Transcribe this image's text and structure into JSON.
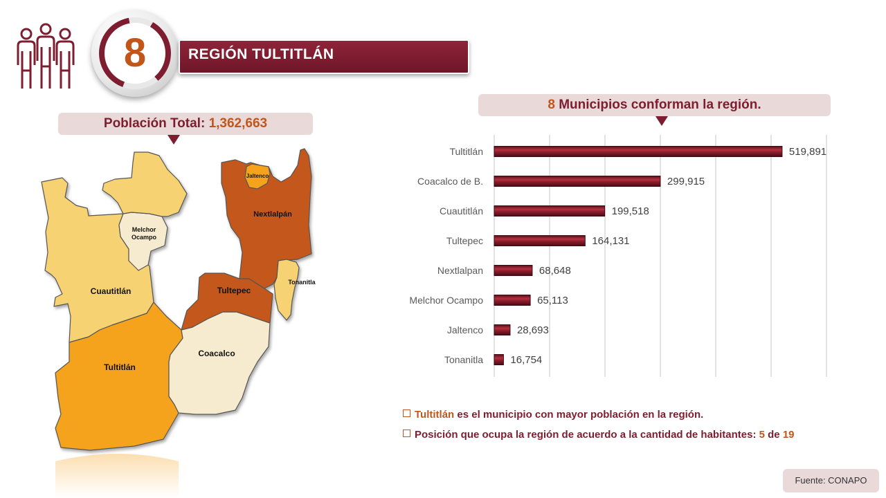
{
  "header": {
    "region_number": "8",
    "region_title": "REGIÓN TULTITLÁN",
    "people_icon": "people-group-icon"
  },
  "population": {
    "label": "Población Total:",
    "value": "1,362,663"
  },
  "chart_header": {
    "count": "8",
    "text": "Municipios conforman la región."
  },
  "map": {
    "labels": {
      "cuautitlan": "Cuautitlán",
      "melchor_ocampo_1": "Melchor",
      "melchor_ocampo_2": "Ocampo",
      "tultitlan": "Tultitlán",
      "coacalco": "Coacalco",
      "tultepec": "Tultepec",
      "nextlalpan": "Nextlalpán",
      "jaltenco": "Jaltenco",
      "tonanitla": "Tonanitla"
    },
    "colors": {
      "light_yellow": "#f6d273",
      "cream": "#f6ebcf",
      "orange": "#f5a21e",
      "dark_orange": "#c4581b",
      "border": "#555555"
    }
  },
  "chart_data": {
    "type": "bar",
    "orientation": "horizontal",
    "categories": [
      "Tultitlán",
      "Coacalco de B.",
      "Cuautitlán",
      "Tultepec",
      "Nextlalpan",
      "Melchor Ocampo",
      "Jaltenco",
      "Tonanitla"
    ],
    "values": [
      519891,
      299915,
      199518,
      164131,
      68648,
      65113,
      28693,
      16754
    ],
    "value_labels": [
      "519,891",
      "299,915",
      "199,518",
      "164,131",
      "68,648",
      "65,113",
      "28,693",
      "16,754"
    ],
    "xlim": [
      0,
      600000
    ],
    "grid": true,
    "bar_color": "#7d1d2f"
  },
  "notes": {
    "note1_highlight": "Tultitlán",
    "note1_rest": "es el municipio con mayor población en la región.",
    "note2_text": "Posición que ocupa la región de acuerdo a la cantidad de habitantes:",
    "note2_rank": "5",
    "note2_of": "de",
    "note2_total": "19"
  },
  "source": {
    "text": "Fuente: CONAPO"
  }
}
